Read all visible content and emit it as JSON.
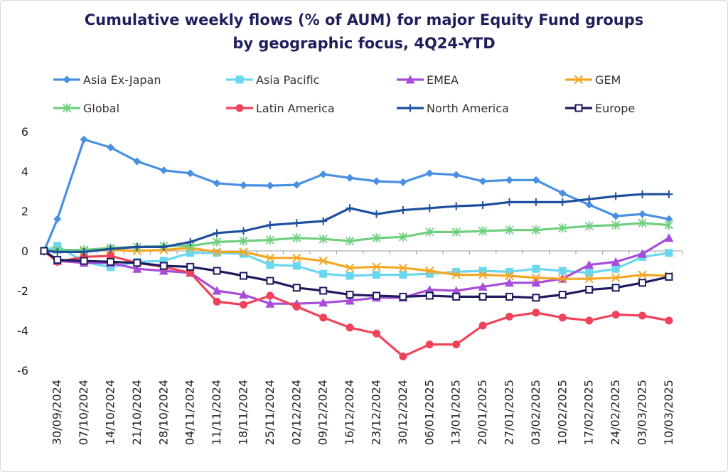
{
  "chart_data": {
    "type": "line",
    "title_line1": "Cumulative weekly flows (% of AUM) for major Equity Fund groups",
    "title_line2": "by geographic focus, 4Q24-YTD",
    "ylim": [
      -6,
      6
    ],
    "yticks": [
      6,
      4,
      2,
      0,
      -2,
      -4,
      -6
    ],
    "legend_position": "top",
    "grid": false,
    "x_labels": [
      "30/09/2024",
      "07/10/2024",
      "14/10/2024",
      "21/10/2024",
      "28/10/2024",
      "04/11/2024",
      "11/11/2024",
      "18/11/2024",
      "25/11/2024",
      "02/12/2024",
      "09/12/2024",
      "16/12/2024",
      "23/12/2024",
      "30/12/2024",
      "06/01/2025",
      "13/01/2025",
      "20/01/2025",
      "27/01/2025",
      "03/02/2025",
      "10/02/2025",
      "17/02/2025",
      "24/02/2025",
      "03/03/2025",
      "10/03/2025"
    ],
    "series": [
      {
        "name": "Asia Ex-Japan",
        "color": "#4a90e2",
        "marker": "diamond",
        "x": [
          0,
          0.5,
          1.5,
          2.5,
          3.5,
          4.5,
          5.5,
          6.5,
          7.5,
          8.5,
          9.5,
          10.5,
          11.5,
          12.5,
          13.5,
          14.5,
          15.5,
          16.5,
          17.5,
          18.5,
          19.5,
          20.5,
          21.5,
          22.5,
          23.5
        ],
        "values": [
          0,
          1.6,
          5.6,
          5.2,
          4.5,
          4.05,
          3.9,
          3.4,
          3.3,
          3.28,
          3.32,
          3.85,
          3.67,
          3.5,
          3.45,
          3.9,
          3.82,
          3.5,
          3.56,
          3.56,
          2.9,
          2.32,
          1.75,
          1.85,
          1.6
        ]
      },
      {
        "name": "Asia Pacific",
        "color": "#6ad7f0",
        "marker": "square",
        "x": [
          0,
          0.5,
          1.5,
          2.5,
          3.5,
          4.5,
          5.5,
          6.5,
          7.5,
          8.5,
          9.5,
          10.5,
          11.5,
          12.5,
          13.5,
          14.5,
          15.5,
          16.5,
          17.5,
          18.5,
          19.5,
          20.5,
          21.5,
          22.5,
          23.5
        ],
        "values": [
          0,
          0.25,
          -0.55,
          -0.82,
          -0.55,
          -0.5,
          -0.1,
          -0.1,
          -0.15,
          -0.7,
          -0.75,
          -1.15,
          -1.25,
          -1.2,
          -1.2,
          -1.15,
          -1.05,
          -1.0,
          -1.05,
          -0.9,
          -1.0,
          -1.1,
          -0.9,
          -0.3,
          -0.1
        ]
      },
      {
        "name": "EMEA",
        "color": "#a64dd9",
        "marker": "triangle",
        "x": [
          0,
          0.5,
          1.5,
          2.5,
          3.5,
          4.5,
          5.5,
          6.5,
          7.5,
          8.5,
          9.5,
          10.5,
          11.5,
          12.5,
          13.5,
          14.5,
          15.5,
          16.5,
          17.5,
          18.5,
          19.5,
          20.5,
          21.5,
          22.5,
          23.5
        ],
        "values": [
          0,
          -0.5,
          -0.6,
          -0.6,
          -0.9,
          -1.0,
          -1.1,
          -2.0,
          -2.2,
          -2.65,
          -2.65,
          -2.6,
          -2.5,
          -2.35,
          -2.35,
          -1.95,
          -2.0,
          -1.8,
          -1.6,
          -1.6,
          -1.4,
          -0.7,
          -0.55,
          -0.15,
          0.65
        ]
      },
      {
        "name": "GEM",
        "color": "#f5a623",
        "marker": "x",
        "x": [
          0,
          0.5,
          1.5,
          2.5,
          3.5,
          4.5,
          5.5,
          6.5,
          7.5,
          8.5,
          9.5,
          10.5,
          11.5,
          12.5,
          13.5,
          14.5,
          15.5,
          16.5,
          17.5,
          18.5,
          19.5,
          20.5,
          21.5,
          22.5,
          23.5
        ],
        "values": [
          0,
          0.05,
          0.0,
          0.05,
          0.0,
          0.05,
          0.15,
          -0.05,
          -0.05,
          -0.35,
          -0.35,
          -0.5,
          -0.85,
          -0.8,
          -0.85,
          -1.0,
          -1.2,
          -1.2,
          -1.25,
          -1.35,
          -1.4,
          -1.4,
          -1.35,
          -1.2,
          -1.25
        ]
      },
      {
        "name": "Global",
        "color": "#6fcf7f",
        "marker": "asterisk",
        "x": [
          0,
          0.5,
          1.5,
          2.5,
          3.5,
          4.5,
          5.5,
          6.5,
          7.5,
          8.5,
          9.5,
          10.5,
          11.5,
          12.5,
          13.5,
          14.5,
          15.5,
          16.5,
          17.5,
          18.5,
          19.5,
          20.5,
          21.5,
          22.5,
          23.5
        ],
        "values": [
          0,
          0.05,
          0.05,
          0.15,
          0.2,
          0.25,
          0.25,
          0.45,
          0.5,
          0.55,
          0.65,
          0.6,
          0.5,
          0.65,
          0.7,
          0.95,
          0.95,
          1.0,
          1.05,
          1.05,
          1.15,
          1.25,
          1.3,
          1.4,
          1.3
        ]
      },
      {
        "name": "Latin America",
        "color": "#f0435a",
        "marker": "circle",
        "x": [
          0,
          0.5,
          1.5,
          2.5,
          3.5,
          4.5,
          5.5,
          6.5,
          7.5,
          8.5,
          9.5,
          10.5,
          11.5,
          12.5,
          13.5,
          14.5,
          15.5,
          16.5,
          17.5,
          18.5,
          19.5,
          20.5,
          21.5,
          22.5,
          23.5
        ],
        "values": [
          0,
          -0.55,
          -0.3,
          -0.25,
          -0.6,
          -0.8,
          -1.1,
          -2.55,
          -2.7,
          -2.25,
          -2.8,
          -3.35,
          -3.85,
          -4.15,
          -5.3,
          -4.7,
          -4.7,
          -3.75,
          -3.3,
          -3.1,
          -3.35,
          -3.5,
          -3.2,
          -3.25,
          -3.5
        ]
      },
      {
        "name": "North America",
        "color": "#1d4f9e",
        "marker": "plus",
        "x": [
          0,
          0.5,
          1.5,
          2.5,
          3.5,
          4.5,
          5.5,
          6.5,
          7.5,
          8.5,
          9.5,
          10.5,
          11.5,
          12.5,
          13.5,
          14.5,
          15.5,
          16.5,
          17.5,
          18.5,
          19.5,
          20.5,
          21.5,
          22.5,
          23.5
        ],
        "values": [
          0,
          -0.05,
          -0.05,
          0.1,
          0.2,
          0.2,
          0.45,
          0.9,
          1.0,
          1.3,
          1.4,
          1.5,
          2.15,
          1.85,
          2.05,
          2.15,
          2.25,
          2.3,
          2.45,
          2.45,
          2.45,
          2.6,
          2.75,
          2.85,
          2.85
        ]
      },
      {
        "name": "Europe",
        "color": "#1e1b5e",
        "marker": "open-square",
        "x": [
          0,
          0.5,
          1.5,
          2.5,
          3.5,
          4.5,
          5.5,
          6.5,
          7.5,
          8.5,
          9.5,
          10.5,
          11.5,
          12.5,
          13.5,
          14.5,
          15.5,
          16.5,
          17.5,
          18.5,
          19.5,
          20.5,
          21.5,
          22.5,
          23.5
        ],
        "values": [
          0,
          -0.45,
          -0.5,
          -0.55,
          -0.6,
          -0.75,
          -0.8,
          -1.0,
          -1.25,
          -1.5,
          -1.85,
          -2.0,
          -2.2,
          -2.25,
          -2.3,
          -2.25,
          -2.3,
          -2.3,
          -2.3,
          -2.35,
          -2.2,
          -1.95,
          -1.85,
          -1.6,
          -1.3
        ]
      }
    ]
  }
}
